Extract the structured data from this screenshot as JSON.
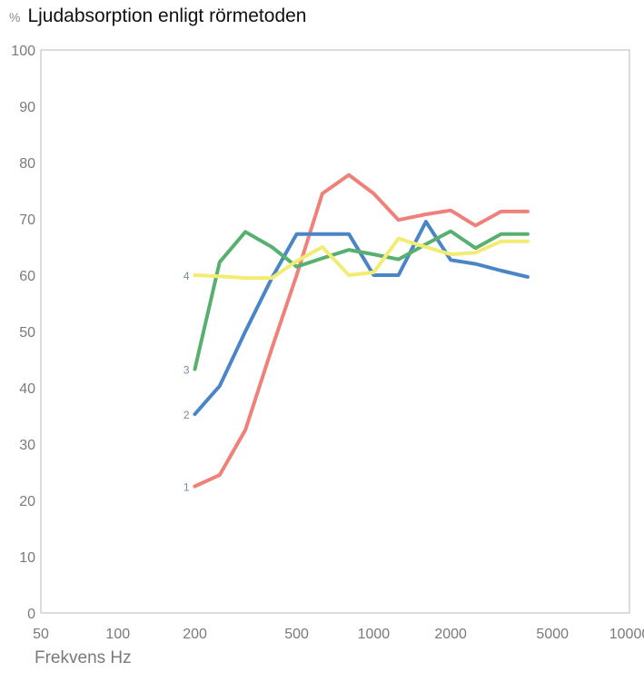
{
  "chart_data": {
    "type": "line",
    "title": "Ljudabsorption enligt rörmetoden",
    "ylabel": "%",
    "xlabel": "Frekvens Hz",
    "x_scale": "log",
    "xlim": [
      50,
      10000
    ],
    "ylim": [
      0,
      100
    ],
    "x_ticks": [
      50,
      100,
      200,
      500,
      1000,
      2000,
      5000,
      10000
    ],
    "x_tick_labels": [
      "50",
      "100",
      "200",
      "500",
      "1000",
      "2000",
      "5000",
      "10000"
    ],
    "y_ticks": [
      0,
      10,
      20,
      30,
      40,
      50,
      60,
      70,
      80,
      90,
      100
    ],
    "y_tick_labels": [
      "0",
      "10",
      "20",
      "30",
      "40",
      "50",
      "60",
      "70",
      "80",
      "90",
      "100"
    ],
    "grid": false,
    "series": [
      {
        "name": "1",
        "color": "#f0807a",
        "x": [
          200,
          250,
          315,
          400,
          500,
          630,
          800,
          1000,
          1250,
          1600,
          2000,
          2500,
          3150,
          4000
        ],
        "y": [
          22.5,
          24.5,
          32.5,
          47,
          60,
          74.5,
          77.8,
          74.5,
          69.8,
          70.8,
          71.5,
          68.8,
          71.3,
          71.3
        ]
      },
      {
        "name": "2",
        "color": "#4a85c8",
        "x": [
          200,
          250,
          315,
          400,
          500,
          630,
          800,
          1000,
          1250,
          1600,
          2000,
          2500,
          3150,
          4000
        ],
        "y": [
          35.3,
          40.3,
          50,
          59.5,
          67.3,
          67.3,
          67.3,
          60,
          60,
          69.5,
          62.7,
          62,
          60.8,
          59.7
        ]
      },
      {
        "name": "3",
        "color": "#58b070",
        "x": [
          200,
          250,
          315,
          400,
          500,
          630,
          800,
          1000,
          1250,
          1600,
          2000,
          2500,
          3150,
          4000
        ],
        "y": [
          43.3,
          62.3,
          67.7,
          65,
          61.5,
          63,
          64.5,
          63.7,
          62.8,
          65.5,
          67.8,
          64.8,
          67.3,
          67.3
        ]
      },
      {
        "name": "4",
        "color": "#f2ec72",
        "x": [
          200,
          250,
          315,
          400,
          500,
          630,
          800,
          1000,
          1250,
          1600,
          2000,
          2500,
          3150,
          4000
        ],
        "y": [
          60,
          59.8,
          59.5,
          59.5,
          62.5,
          65,
          60,
          60.5,
          66.5,
          65,
          63.7,
          64,
          66,
          66
        ]
      }
    ]
  }
}
